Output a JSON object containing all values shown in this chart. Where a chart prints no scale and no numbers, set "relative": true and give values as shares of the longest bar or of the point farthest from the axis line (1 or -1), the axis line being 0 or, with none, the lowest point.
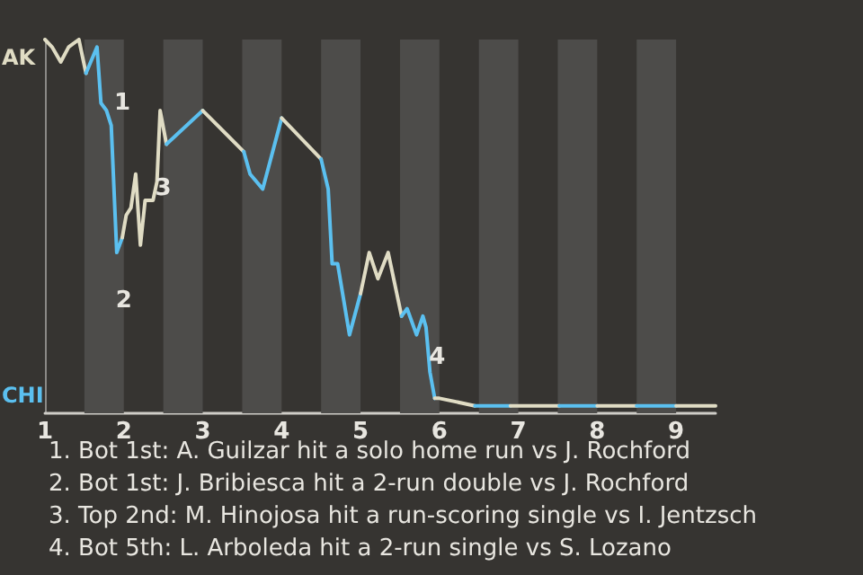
{
  "chart_data": {
    "type": "line",
    "relative": true,
    "legend": "left",
    "xlim": [
      1,
      9.5
    ],
    "xticks": [
      1,
      2,
      3,
      4,
      5,
      6,
      7,
      8,
      9
    ],
    "marker": "none",
    "series": [
      {
        "name": "AK",
        "color": "#e0dcc4",
        "x": [
          1,
          1.09,
          1.2,
          1.3,
          1.43,
          1.52
        ],
        "values": [
          1,
          0.98,
          0.94,
          0.98,
          1,
          0.91
        ]
      },
      {
        "name": "CHI",
        "color": "#5bc0f0",
        "x": [
          1.52,
          1.66,
          1.71,
          1.78,
          1.84,
          1.91,
          1.98
        ],
        "values": [
          0.91,
          0.98,
          0.83,
          0.81,
          0.77,
          0.43,
          0.47
        ]
      },
      {
        "color": "#e0dcc4",
        "x": [
          1.98,
          2.03,
          2.09,
          2.15,
          2.21,
          2.27,
          2.37,
          2.42,
          2.46,
          2.54
        ],
        "values": [
          0.47,
          0.53,
          0.55,
          0.64,
          0.45,
          0.57,
          0.57,
          0.62,
          0.81,
          0.72
        ]
      },
      {
        "color": "#5bc0f0",
        "x": [
          2.54,
          3
        ],
        "values": [
          0.72,
          0.81
        ]
      },
      {
        "color": "#e0dcc4",
        "x": [
          3,
          3.52
        ],
        "values": [
          0.81,
          0.7
        ]
      },
      {
        "color": "#5bc0f0",
        "x": [
          3.52,
          3.6,
          3.76,
          4
        ],
        "values": [
          0.7,
          0.64,
          0.6,
          0.79
        ]
      },
      {
        "color": "#e0dcc4",
        "x": [
          4,
          4.5
        ],
        "values": [
          0.79,
          0.68
        ]
      },
      {
        "color": "#5bc0f0",
        "x": [
          4.5,
          4.59,
          4.64,
          4.71,
          4.86,
          5
        ],
        "values": [
          0.68,
          0.6,
          0.4,
          0.4,
          0.21,
          0.32
        ]
      },
      {
        "color": "#e0dcc4",
        "x": [
          5,
          5.11,
          5.22,
          5.35,
          5.52
        ],
        "values": [
          0.32,
          0.43,
          0.36,
          0.43,
          0.26
        ]
      },
      {
        "color": "#5bc0f0",
        "x": [
          5.52,
          5.59,
          5.71,
          5.79,
          5.83,
          5.88,
          5.94
        ],
        "values": [
          0.26,
          0.28,
          0.21,
          0.26,
          0.23,
          0.11,
          0.04
        ]
      },
      {
        "color": "#e0dcc4",
        "x": [
          5.94,
          6,
          6.45
        ],
        "values": [
          0.04,
          0.04,
          0.02
        ]
      },
      {
        "color": "#5bc0f0",
        "x": [
          6.45,
          6.9
        ],
        "values": [
          0.02,
          0.02
        ]
      },
      {
        "color": "#e0dcc4",
        "x": [
          6.9,
          7,
          7.52
        ],
        "values": [
          0.02,
          0.02,
          0.02
        ]
      },
      {
        "color": "#5bc0f0",
        "x": [
          7.52,
          8
        ],
        "values": [
          0.02,
          0.02
        ]
      },
      {
        "color": "#e0dcc4",
        "x": [
          8,
          8.5
        ],
        "values": [
          0.02,
          0.02
        ]
      },
      {
        "color": "#5bc0f0",
        "x": [
          8.5,
          9
        ],
        "values": [
          0.02,
          0.02
        ]
      },
      {
        "color": "#e0dcc4",
        "x": [
          9,
          9.5
        ],
        "values": [
          0.02,
          0.02
        ]
      }
    ],
    "bands": [
      {
        "axis": "x",
        "from": 1.5,
        "to": 2,
        "color": "#4d4c4a"
      },
      {
        "axis": "x",
        "from": 2.5,
        "to": 3,
        "color": "#4d4c4a"
      },
      {
        "axis": "x",
        "from": 3.5,
        "to": 4,
        "color": "#4d4c4a"
      },
      {
        "axis": "x",
        "from": 4.5,
        "to": 5,
        "color": "#4d4c4a"
      },
      {
        "axis": "x",
        "from": 5.5,
        "to": 6,
        "color": "#4d4c4a"
      },
      {
        "axis": "x",
        "from": 6.5,
        "to": 7,
        "color": "#4d4c4a"
      },
      {
        "axis": "x",
        "from": 7.5,
        "to": 8,
        "color": "#4d4c4a"
      },
      {
        "axis": "x",
        "from": 8.5,
        "to": 9,
        "color": "#4d4c4a"
      }
    ],
    "annotations": [
      {
        "text": "1",
        "x": 1.98,
        "y": 0.83
      },
      {
        "text": "2",
        "x": 2,
        "y": 0.3
      },
      {
        "text": "3",
        "x": 2.5,
        "y": 0.6
      },
      {
        "text": "4",
        "x": 5.97,
        "y": 0.15
      },
      "1. Bot 1st: A. Guilzar hit a solo home run vs J. Rochford",
      "2. Bot 1st: J. Bribiesca hit a 2-run double vs J. Rochford",
      "3. Top 2nd: M. Hinojosa hit a run-scoring single vs I. Jentzsch",
      "4. Bot 5th: L. Arboleda hit a 2-run single vs S. Lozano"
    ]
  }
}
